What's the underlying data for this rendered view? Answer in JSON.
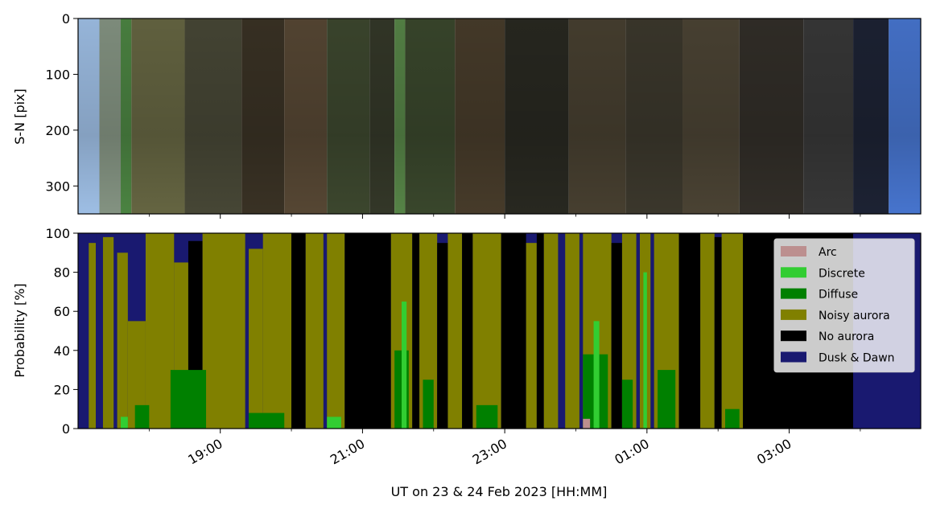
{
  "chart_data": [
    {
      "type": "heatmap",
      "panel": "keogram",
      "ylabel": "S-N [pix]",
      "y_ticks": [
        0,
        100,
        200,
        300
      ],
      "ylim": [
        350,
        0
      ],
      "x_range_hours": [
        17.0,
        28.85
      ],
      "segments": [
        {
          "x0": 17.0,
          "x1": 17.3,
          "color": "#a6c8f0"
        },
        {
          "x0": 17.3,
          "x1": 17.6,
          "color": "#8a9a88"
        },
        {
          "x0": 17.6,
          "x1": 17.75,
          "color": "#4f8a45"
        },
        {
          "x0": 17.75,
          "x1": 18.5,
          "color": "#6a6a45"
        },
        {
          "x0": 18.5,
          "x1": 19.3,
          "color": "#4a4a38"
        },
        {
          "x0": 19.3,
          "x1": 19.9,
          "color": "#3c3426"
        },
        {
          "x0": 19.9,
          "x1": 20.5,
          "color": "#5a4a36"
        },
        {
          "x0": 20.5,
          "x1": 21.1,
          "color": "#3f4a30"
        },
        {
          "x0": 21.1,
          "x1": 21.45,
          "color": "#363a2a"
        },
        {
          "x0": 21.45,
          "x1": 21.6,
          "color": "#5a8a4a"
        },
        {
          "x0": 21.6,
          "x1": 22.3,
          "color": "#3c4a2e"
        },
        {
          "x0": 22.3,
          "x1": 23.0,
          "color": "#4a3e2c"
        },
        {
          "x0": 23.0,
          "x1": 23.9,
          "color": "#2a2a22"
        },
        {
          "x0": 23.9,
          "x1": 24.7,
          "color": "#4a4232"
        },
        {
          "x0": 24.7,
          "x1": 25.5,
          "color": "#3e3a2e"
        },
        {
          "x0": 25.5,
          "x1": 26.3,
          "color": "#4e4636"
        },
        {
          "x0": 26.3,
          "x1": 27.2,
          "color": "#34302a"
        },
        {
          "x0": 27.2,
          "x1": 27.9,
          "color": "#3a3a3a"
        },
        {
          "x0": 27.9,
          "x1": 28.4,
          "color": "#1e2436"
        },
        {
          "x0": 28.4,
          "x1": 28.85,
          "color": "#4a7ad8"
        }
      ]
    },
    {
      "type": "area",
      "panel": "probability",
      "ylabel": "Probability [%]",
      "ylim": [
        0,
        100
      ],
      "y_ticks": [
        0,
        20,
        40,
        60,
        80,
        100
      ],
      "xlabel": "UT on 23 & 24 Feb 2023 [HH:MM]",
      "x_range_hours": [
        17.0,
        28.85
      ],
      "x_ticks": [
        {
          "hour": 19,
          "label": "19:00"
        },
        {
          "hour": 21,
          "label": "21:00"
        },
        {
          "hour": 23,
          "label": "23:00"
        },
        {
          "hour": 25,
          "label": "01:00"
        },
        {
          "hour": 27,
          "label": "03:00"
        }
      ],
      "x_minor_ticks": [
        18,
        20,
        22,
        24,
        26,
        28
      ],
      "legend": {
        "placement": "top-right",
        "entries": [
          {
            "label": "Arc",
            "color": "#bc8f8f"
          },
          {
            "label": "Discrete",
            "color": "#32cd32"
          },
          {
            "label": "Diffuse",
            "color": "#008000"
          },
          {
            "label": "Noisy aurora",
            "color": "#808000"
          },
          {
            "label": "No aurora",
            "color": "#000000"
          },
          {
            "label": "Dusk & Dawn",
            "color": "#191970"
          }
        ]
      },
      "background_series": "Dusk & Dawn",
      "segments": [
        {
          "series": "Dusk & Dawn",
          "x0": 17.0,
          "x1": 17.15,
          "top": 100
        },
        {
          "series": "Noisy aurora",
          "x0": 17.15,
          "x1": 17.25,
          "top": 95
        },
        {
          "series": "Dusk & Dawn",
          "x0": 17.25,
          "x1": 17.35,
          "top": 100
        },
        {
          "series": "Noisy aurora",
          "x0": 17.35,
          "x1": 17.5,
          "top": 98
        },
        {
          "series": "Noisy aurora",
          "x0": 17.55,
          "x1": 17.7,
          "top": 90
        },
        {
          "series": "Noisy aurora",
          "x0": 17.7,
          "x1": 17.95,
          "top": 55
        },
        {
          "series": "Noisy aurora",
          "x0": 17.95,
          "x1": 18.35,
          "top": 100
        },
        {
          "series": "Noisy aurora",
          "x0": 18.35,
          "x1": 18.55,
          "top": 85
        },
        {
          "series": "No aurora",
          "x0": 18.55,
          "x1": 18.75,
          "top": 96
        },
        {
          "series": "Noisy aurora",
          "x0": 18.75,
          "x1": 19.35,
          "top": 100
        },
        {
          "series": "Noisy aurora",
          "x0": 19.4,
          "x1": 19.6,
          "top": 92
        },
        {
          "series": "Noisy aurora",
          "x0": 19.6,
          "x1": 20.0,
          "top": 100
        },
        {
          "series": "No aurora",
          "x0": 20.0,
          "x1": 20.2,
          "top": 100
        },
        {
          "series": "Noisy aurora",
          "x0": 20.2,
          "x1": 20.45,
          "top": 100
        },
        {
          "series": "Noisy aurora",
          "x0": 20.5,
          "x1": 20.75,
          "top": 100
        },
        {
          "series": "No aurora",
          "x0": 20.75,
          "x1": 21.4,
          "top": 100
        },
        {
          "series": "Noisy aurora",
          "x0": 21.4,
          "x1": 21.7,
          "top": 100
        },
        {
          "series": "No aurora",
          "x0": 21.7,
          "x1": 21.8,
          "top": 100
        },
        {
          "series": "Noisy aurora",
          "x0": 21.8,
          "x1": 22.05,
          "top": 100
        },
        {
          "series": "No aurora",
          "x0": 22.05,
          "x1": 22.2,
          "top": 95
        },
        {
          "series": "Noisy aurora",
          "x0": 22.2,
          "x1": 22.4,
          "top": 100
        },
        {
          "series": "No aurora",
          "x0": 22.4,
          "x1": 22.55,
          "top": 100
        },
        {
          "series": "Noisy aurora",
          "x0": 22.55,
          "x1": 22.95,
          "top": 100
        },
        {
          "series": "No aurora",
          "x0": 22.95,
          "x1": 23.3,
          "top": 100
        },
        {
          "series": "Noisy aurora",
          "x0": 23.3,
          "x1": 23.45,
          "top": 95
        },
        {
          "series": "No aurora",
          "x0": 23.45,
          "x1": 23.55,
          "top": 100
        },
        {
          "series": "Noisy aurora",
          "x0": 23.55,
          "x1": 23.75,
          "top": 100
        },
        {
          "series": "Noisy aurora",
          "x0": 23.85,
          "x1": 24.05,
          "top": 100
        },
        {
          "series": "Noisy aurora",
          "x0": 24.1,
          "x1": 24.5,
          "top": 100
        },
        {
          "series": "No aurora",
          "x0": 24.5,
          "x1": 24.65,
          "top": 95
        },
        {
          "series": "Noisy aurora",
          "x0": 24.65,
          "x1": 24.85,
          "top": 100
        },
        {
          "series": "Noisy aurora",
          "x0": 24.9,
          "x1": 25.05,
          "top": 100
        },
        {
          "series": "Noisy aurora",
          "x0": 25.1,
          "x1": 25.45,
          "top": 100
        },
        {
          "series": "No aurora",
          "x0": 25.45,
          "x1": 25.75,
          "top": 100
        },
        {
          "series": "Noisy aurora",
          "x0": 25.75,
          "x1": 25.95,
          "top": 100
        },
        {
          "series": "No aurora",
          "x0": 25.95,
          "x1": 26.05,
          "top": 98
        },
        {
          "series": "Noisy aurora",
          "x0": 26.05,
          "x1": 26.35,
          "top": 100
        },
        {
          "series": "No aurora",
          "x0": 26.35,
          "x1": 27.9,
          "top": 100
        },
        {
          "series": "Dusk & Dawn",
          "x0": 27.9,
          "x1": 28.85,
          "top": 100
        },
        {
          "series": "Diffuse",
          "x0": 17.8,
          "x1": 18.0,
          "top": 12
        },
        {
          "series": "Diffuse",
          "x0": 18.3,
          "x1": 18.8,
          "top": 30
        },
        {
          "series": "Diffuse",
          "x0": 19.4,
          "x1": 19.9,
          "top": 8
        },
        {
          "series": "Diffuse",
          "x0": 21.45,
          "x1": 21.65,
          "top": 40
        },
        {
          "series": "Diffuse",
          "x0": 21.85,
          "x1": 22.0,
          "top": 25
        },
        {
          "series": "Diffuse",
          "x0": 22.6,
          "x1": 22.9,
          "top": 12
        },
        {
          "series": "Diffuse",
          "x0": 24.1,
          "x1": 24.45,
          "top": 38
        },
        {
          "series": "Diffuse",
          "x0": 24.65,
          "x1": 24.8,
          "top": 25
        },
        {
          "series": "Diffuse",
          "x0": 25.15,
          "x1": 25.4,
          "top": 30
        },
        {
          "series": "Diffuse",
          "x0": 26.1,
          "x1": 26.3,
          "top": 10
        },
        {
          "series": "Discrete",
          "x0": 17.6,
          "x1": 17.7,
          "top": 6
        },
        {
          "series": "Discrete",
          "x0": 20.5,
          "x1": 20.7,
          "top": 6
        },
        {
          "series": "Discrete",
          "x0": 21.55,
          "x1": 21.62,
          "top": 65
        },
        {
          "series": "Discrete",
          "x0": 24.25,
          "x1": 24.33,
          "top": 55
        },
        {
          "series": "Discrete",
          "x0": 24.95,
          "x1": 25.0,
          "top": 80
        },
        {
          "series": "Arc",
          "x0": 24.1,
          "x1": 24.2,
          "top": 5
        }
      ]
    }
  ]
}
